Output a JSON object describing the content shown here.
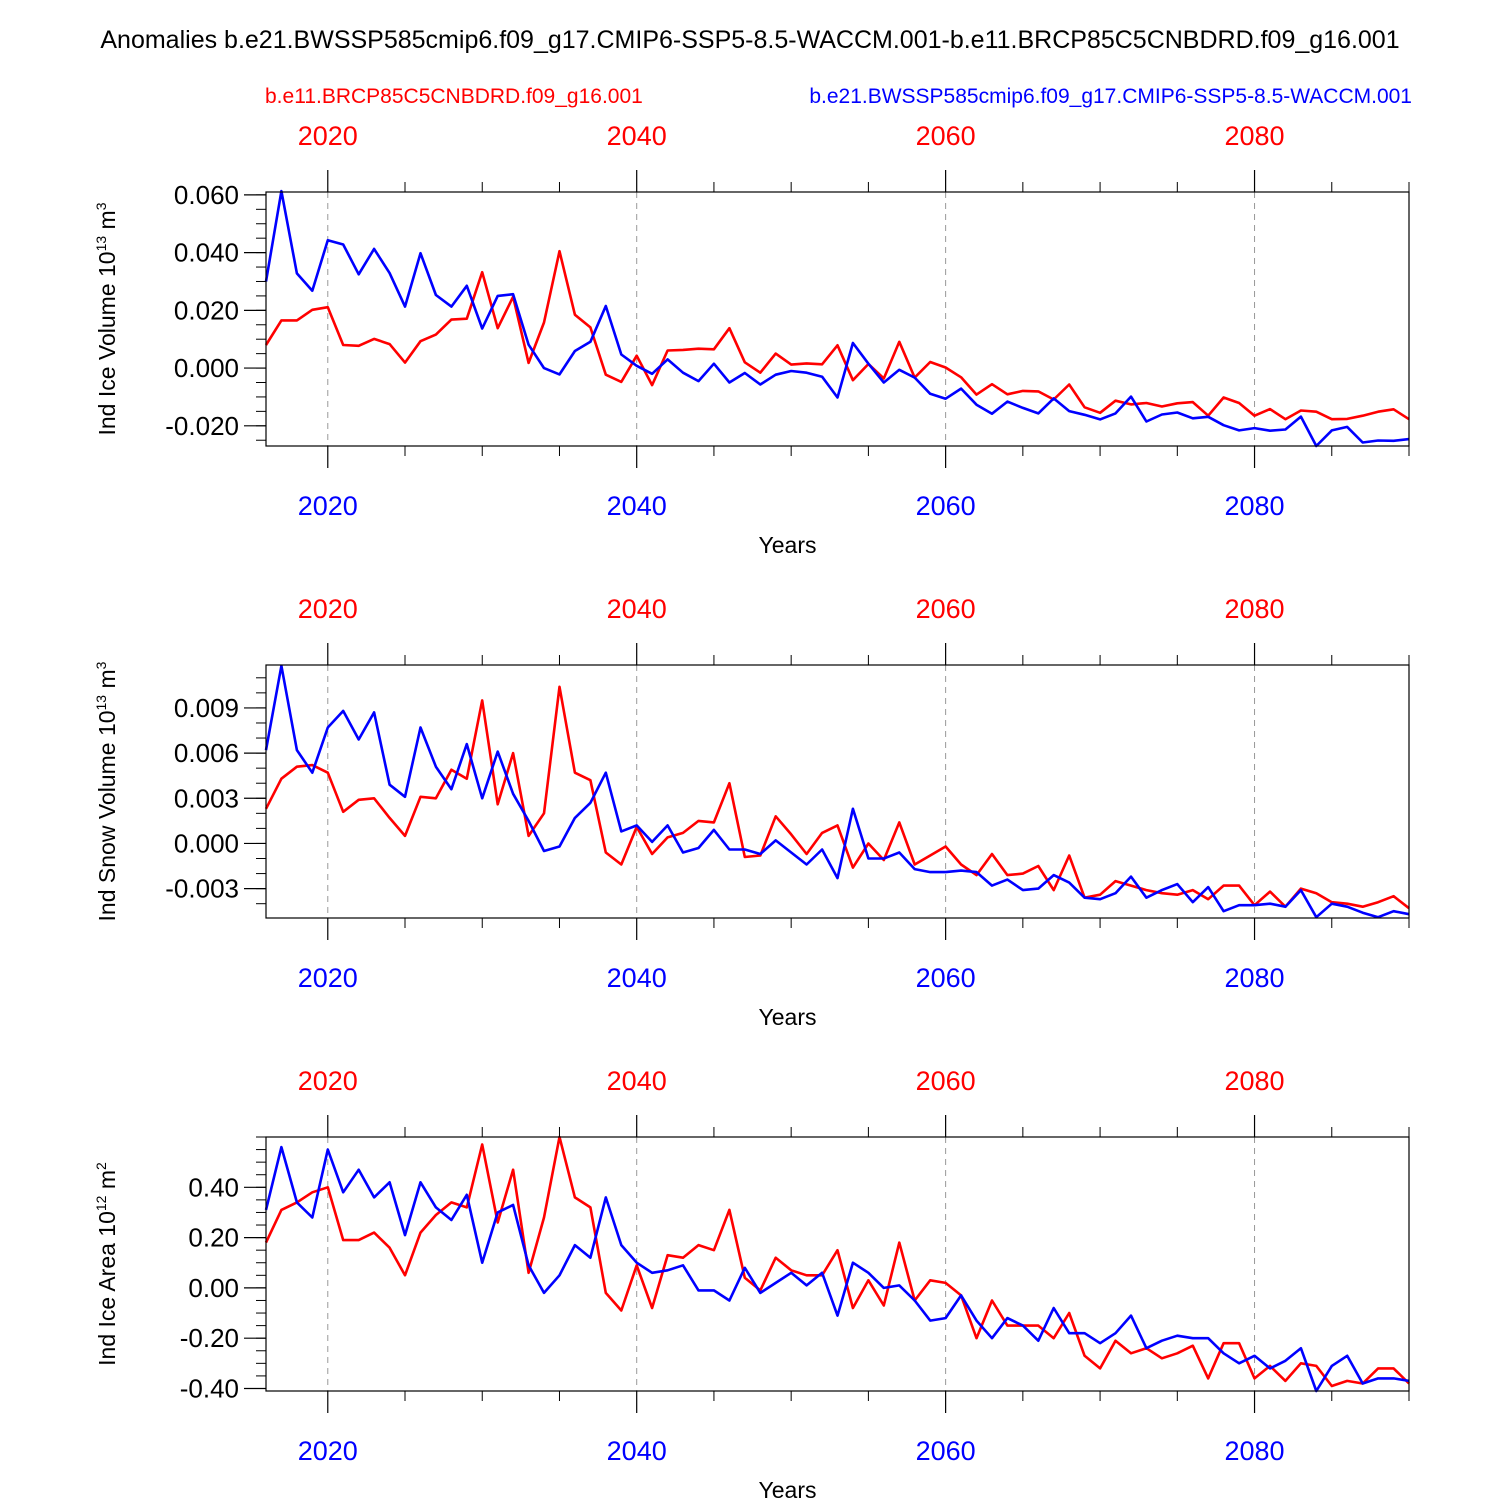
{
  "title": "Anomalies b.e21.BWSSP585cmip6.f09_g17.CMIP6-SSP5-8.5-WACCM.001-b.e11.BRCP85C5CNBDRD.f09_g16.001",
  "legend": {
    "red_label": "b.e11.BRCP85C5CNBDRD.f09_g16.001",
    "blue_label": "b.e21.BWSSP585cmip6.f09_g17.CMIP6-SSP5-8.5-WACCM.001"
  },
  "colors": {
    "red": "#ff0000",
    "blue": "#0000ff",
    "axis": "#000000",
    "grid": "#999999"
  },
  "chart_data": [
    {
      "type": "line",
      "ylabel": "Ind Ice Volume 10",
      "ylabel_exp": "13",
      "ylabel_unit": " m",
      "ylabel_unit_exp": "3",
      "xlabel": "Years",
      "xlim": [
        2016,
        2090
      ],
      "ylim": [
        -0.027,
        0.061
      ],
      "yticks": [
        -0.02,
        0.0,
        0.02,
        0.04,
        0.06
      ],
      "ytick_labels": [
        "-0.020",
        "0.000",
        "0.020",
        "0.040",
        "0.060"
      ],
      "yminor": 0.005,
      "xticks": [
        2020,
        2040,
        2060,
        2080
      ],
      "xtick_labels": [
        "2020",
        "2040",
        "2060",
        "2080"
      ],
      "x_start": 2016,
      "series": [
        {
          "name": "b.e11.BRCP85C5CNBDRD.f09_g16.001",
          "color": "red",
          "values": [
            0.008,
            0.0165,
            0.0165,
            0.0202,
            0.0211,
            0.008,
            0.0077,
            0.0101,
            0.0083,
            0.0019,
            0.0093,
            0.0116,
            0.0168,
            0.0171,
            0.0332,
            0.0138,
            0.0247,
            0.0018,
            0.0158,
            0.0405,
            0.0185,
            0.0141,
            -0.0023,
            -0.0048,
            0.0043,
            -0.0059,
            0.0061,
            0.0063,
            0.0067,
            0.0065,
            0.0138,
            0.002,
            -0.0016,
            0.005,
            0.0012,
            0.0016,
            0.0013,
            0.0079,
            -0.0042,
            0.0014,
            -0.0036,
            0.0091,
            -0.0033,
            0.0021,
            0.0002,
            -0.0032,
            -0.0092,
            -0.0056,
            -0.0091,
            -0.0079,
            -0.0081,
            -0.0109,
            -0.0057,
            -0.0136,
            -0.0155,
            -0.0113,
            -0.0126,
            -0.0121,
            -0.0133,
            -0.0122,
            -0.0118,
            -0.0165,
            -0.0102,
            -0.0121,
            -0.0165,
            -0.0142,
            -0.0177,
            -0.0147,
            -0.0151,
            -0.0177,
            -0.0176,
            -0.0165,
            -0.0151,
            -0.0143,
            -0.0177
          ]
        },
        {
          "name": "b.e21.BWSSP585cmip6.f09_g17.CMIP6-SSP5-8.5-WACCM.001",
          "color": "blue",
          "values": [
            0.03,
            0.0613,
            0.0328,
            0.0268,
            0.0443,
            0.0428,
            0.0325,
            0.0413,
            0.0329,
            0.0213,
            0.0398,
            0.0253,
            0.0213,
            0.0285,
            0.0137,
            0.025,
            0.0256,
            0.0081,
            0.0,
            -0.0022,
            0.0059,
            0.0091,
            0.0215,
            0.0047,
            0.0008,
            -0.002,
            0.003,
            -0.0016,
            -0.0045,
            0.0015,
            -0.005,
            -0.0017,
            -0.0057,
            -0.0023,
            -0.001,
            -0.0016,
            -0.003,
            -0.0102,
            0.0087,
            0.0015,
            -0.005,
            -0.0006,
            -0.0033,
            -0.0089,
            -0.0106,
            -0.0071,
            -0.0127,
            -0.0158,
            -0.0116,
            -0.0138,
            -0.0157,
            -0.0105,
            -0.0149,
            -0.0162,
            -0.0178,
            -0.0157,
            -0.0099,
            -0.0185,
            -0.0161,
            -0.0154,
            -0.0174,
            -0.0169,
            -0.0198,
            -0.0216,
            -0.0208,
            -0.0217,
            -0.0213,
            -0.0168,
            -0.027,
            -0.0216,
            -0.0204,
            -0.0258,
            -0.0251,
            -0.0252,
            -0.0246
          ]
        }
      ]
    },
    {
      "type": "line",
      "ylabel": "Ind Snow Volume 10",
      "ylabel_exp": "13",
      "ylabel_unit": " m",
      "ylabel_unit_exp": "3",
      "xlabel": "Years",
      "xlim": [
        2016,
        2090
      ],
      "ylim": [
        -0.00495,
        0.01185
      ],
      "yticks": [
        -0.003,
        0.0,
        0.003,
        0.006,
        0.009
      ],
      "ytick_labels": [
        "-0.003",
        "0.000",
        "0.003",
        "0.006",
        "0.009"
      ],
      "yminor": 0.001,
      "xticks": [
        2020,
        2040,
        2060,
        2080
      ],
      "xtick_labels": [
        "2020",
        "2040",
        "2060",
        "2080"
      ],
      "x_start": 2016,
      "series": [
        {
          "name": "b.e11.BRCP85C5CNBDRD.f09_g16.001",
          "color": "red",
          "values": [
            0.0023,
            0.0043,
            0.0051,
            0.0052,
            0.0047,
            0.0021,
            0.0029,
            0.003,
            0.0017,
            0.0005,
            0.0031,
            0.003,
            0.0049,
            0.0043,
            0.0095,
            0.0026,
            0.006,
            0.0005,
            0.002,
            0.0104,
            0.0047,
            0.0042,
            -0.0006,
            -0.0014,
            0.0011,
            -0.0007,
            0.0004,
            0.0007,
            0.0015,
            0.0014,
            0.004,
            -0.0009,
            -0.0008,
            0.0018,
            0.0006,
            -0.0007,
            0.0007,
            0.0012,
            -0.0016,
            0.0,
            -0.0011,
            0.0014,
            -0.0014,
            -0.0008,
            -0.0002,
            -0.0014,
            -0.0021,
            -0.0007,
            -0.0021,
            -0.002,
            -0.0015,
            -0.0031,
            -0.0008,
            -0.0036,
            -0.0034,
            -0.0025,
            -0.0028,
            -0.0031,
            -0.0033,
            -0.0034,
            -0.0031,
            -0.0037,
            -0.0028,
            -0.0028,
            -0.0041,
            -0.0032,
            -0.0042,
            -0.003,
            -0.0033,
            -0.0039,
            -0.004,
            -0.0042,
            -0.0039,
            -0.0035,
            -0.0043
          ]
        },
        {
          "name": "b.e21.BWSSP585cmip6.f09_g17.CMIP6-SSP5-8.5-WACCM.001",
          "color": "blue",
          "values": [
            0.0062,
            0.0118,
            0.0062,
            0.0047,
            0.0077,
            0.0088,
            0.0069,
            0.0087,
            0.0039,
            0.0031,
            0.0077,
            0.0051,
            0.0036,
            0.0066,
            0.003,
            0.0061,
            0.0033,
            0.0015,
            -0.0005,
            -0.0002,
            0.0017,
            0.0027,
            0.0047,
            0.0008,
            0.0012,
            0.0001,
            0.0012,
            -0.0006,
            -0.0003,
            0.0009,
            -0.0004,
            -0.0004,
            -0.0007,
            0.0002,
            -0.0006,
            -0.0014,
            -0.0004,
            -0.0023,
            0.0023,
            -0.001,
            -0.001,
            -0.0006,
            -0.0017,
            -0.0019,
            -0.0019,
            -0.0018,
            -0.0019,
            -0.0028,
            -0.0024,
            -0.0031,
            -0.003,
            -0.0021,
            -0.0026,
            -0.0036,
            -0.0037,
            -0.0033,
            -0.0022,
            -0.0036,
            -0.0031,
            -0.0027,
            -0.0039,
            -0.0029,
            -0.0045,
            -0.0041,
            -0.0041,
            -0.004,
            -0.0042,
            -0.0031,
            -0.0049,
            -0.004,
            -0.0042,
            -0.0046,
            -0.0049,
            -0.0045,
            -0.0047
          ]
        }
      ]
    },
    {
      "type": "line",
      "ylabel": "Ind Ice Area 10",
      "ylabel_exp": "12",
      "ylabel_unit": " m",
      "ylabel_unit_exp": "2",
      "xlabel": "Years",
      "xlim": [
        2016,
        2090
      ],
      "ylim": [
        -0.41,
        0.6
      ],
      "yticks": [
        -0.4,
        -0.2,
        0.0,
        0.2,
        0.4
      ],
      "ytick_labels": [
        "-0.40",
        "-0.20",
        "0.00",
        "0.20",
        "0.40"
      ],
      "yminor": 0.05,
      "xticks": [
        2020,
        2040,
        2060,
        2080
      ],
      "xtick_labels": [
        "2020",
        "2040",
        "2060",
        "2080"
      ],
      "x_start": 2016,
      "series": [
        {
          "name": "b.e11.BRCP85C5CNBDRD.f09_g16.001",
          "color": "red",
          "values": [
            0.18,
            0.31,
            0.34,
            0.38,
            0.4,
            0.19,
            0.19,
            0.22,
            0.16,
            0.05,
            0.22,
            0.29,
            0.34,
            0.32,
            0.57,
            0.26,
            0.47,
            0.06,
            0.28,
            0.6,
            0.36,
            0.32,
            -0.02,
            -0.09,
            0.09,
            -0.08,
            0.13,
            0.12,
            0.17,
            0.15,
            0.31,
            0.04,
            -0.01,
            0.12,
            0.07,
            0.05,
            0.05,
            0.15,
            -0.08,
            0.03,
            -0.07,
            0.18,
            -0.05,
            0.03,
            0.02,
            -0.03,
            -0.2,
            -0.05,
            -0.15,
            -0.15,
            -0.15,
            -0.2,
            -0.1,
            -0.27,
            -0.32,
            -0.21,
            -0.26,
            -0.24,
            -0.28,
            -0.26,
            -0.23,
            -0.36,
            -0.22,
            -0.22,
            -0.36,
            -0.31,
            -0.37,
            -0.3,
            -0.31,
            -0.39,
            -0.37,
            -0.38,
            -0.32,
            -0.32,
            -0.38
          ]
        },
        {
          "name": "b.e21.BWSSP585cmip6.f09_g17.CMIP6-SSP5-8.5-WACCM.001",
          "color": "blue",
          "values": [
            0.31,
            0.56,
            0.34,
            0.28,
            0.55,
            0.38,
            0.47,
            0.36,
            0.42,
            0.21,
            0.42,
            0.32,
            0.27,
            0.37,
            0.1,
            0.3,
            0.33,
            0.09,
            -0.02,
            0.05,
            0.17,
            0.12,
            0.36,
            0.17,
            0.1,
            0.06,
            0.07,
            0.09,
            -0.01,
            -0.01,
            -0.05,
            0.08,
            -0.02,
            0.02,
            0.06,
            0.01,
            0.06,
            -0.11,
            0.1,
            0.06,
            0.0,
            0.01,
            -0.05,
            -0.13,
            -0.12,
            -0.03,
            -0.13,
            -0.2,
            -0.12,
            -0.15,
            -0.21,
            -0.08,
            -0.18,
            -0.18,
            -0.22,
            -0.18,
            -0.11,
            -0.24,
            -0.21,
            -0.19,
            -0.2,
            -0.2,
            -0.26,
            -0.3,
            -0.27,
            -0.32,
            -0.29,
            -0.24,
            -0.41,
            -0.31,
            -0.27,
            -0.38,
            -0.36,
            -0.36,
            -0.37
          ]
        }
      ]
    }
  ]
}
